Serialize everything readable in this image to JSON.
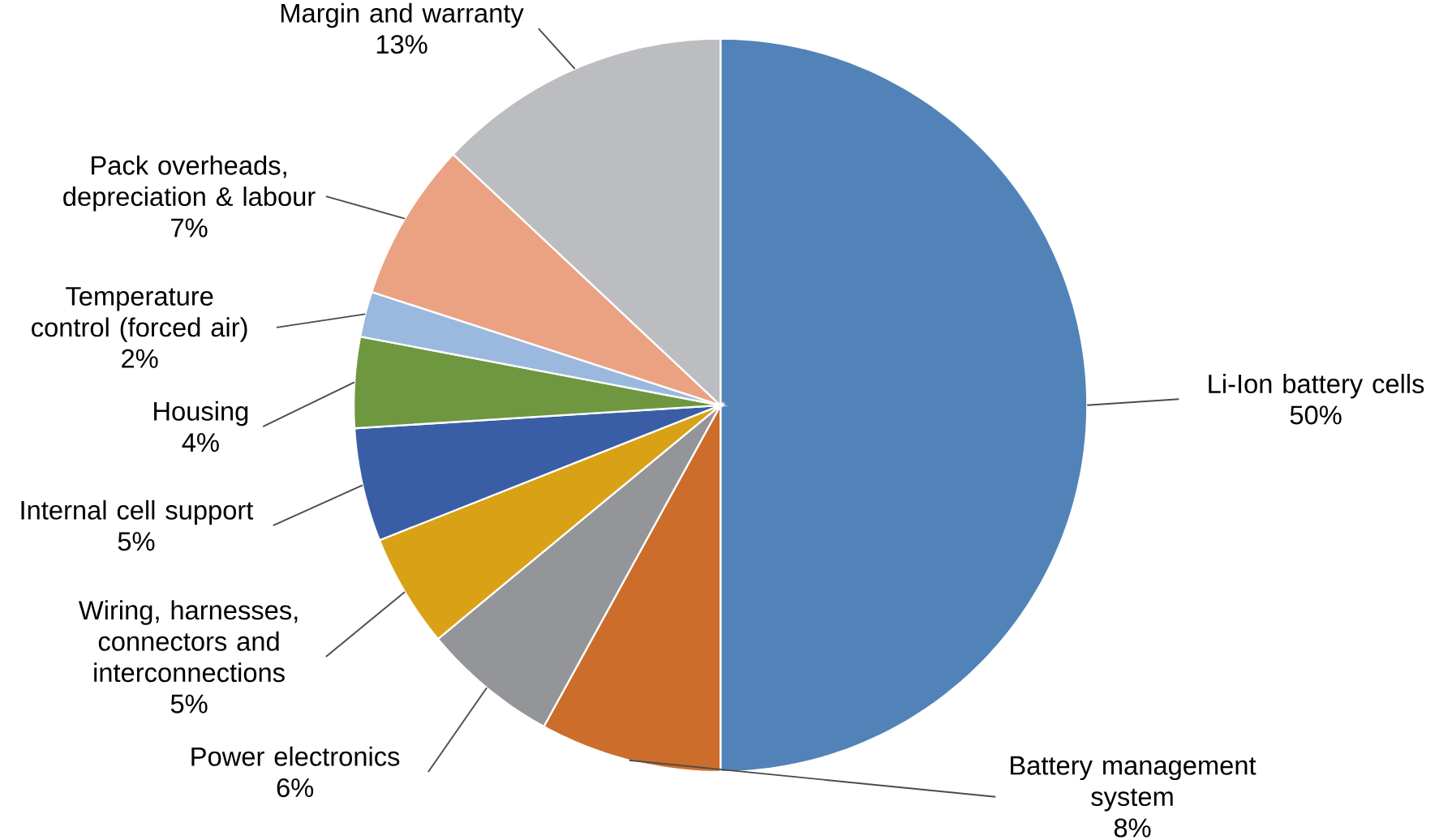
{
  "chart_data": {
    "type": "pie",
    "categories": [
      "Li-Ion battery cells",
      "Battery management system",
      "Power electronics",
      "Wiring, harnesses, connectors and interconnections",
      "Internal cell support",
      "Housing",
      "Temperature control (forced air)",
      "Pack overheads, depreciation & labour",
      "Margin and warranty"
    ],
    "values": [
      50,
      8,
      6,
      5,
      5,
      4,
      2,
      7,
      13
    ],
    "value_labels": [
      "50%",
      "8%",
      "6%",
      "5%",
      "5%",
      "4%",
      "2%",
      "7%",
      "13%"
    ],
    "colors": [
      "#5283b8",
      "#cc6d2b",
      "#939598",
      "#d9a216",
      "#3a5ea6",
      "#6f973f",
      "#9bb9de",
      "#eba283",
      "#bcbdc0"
    ]
  }
}
